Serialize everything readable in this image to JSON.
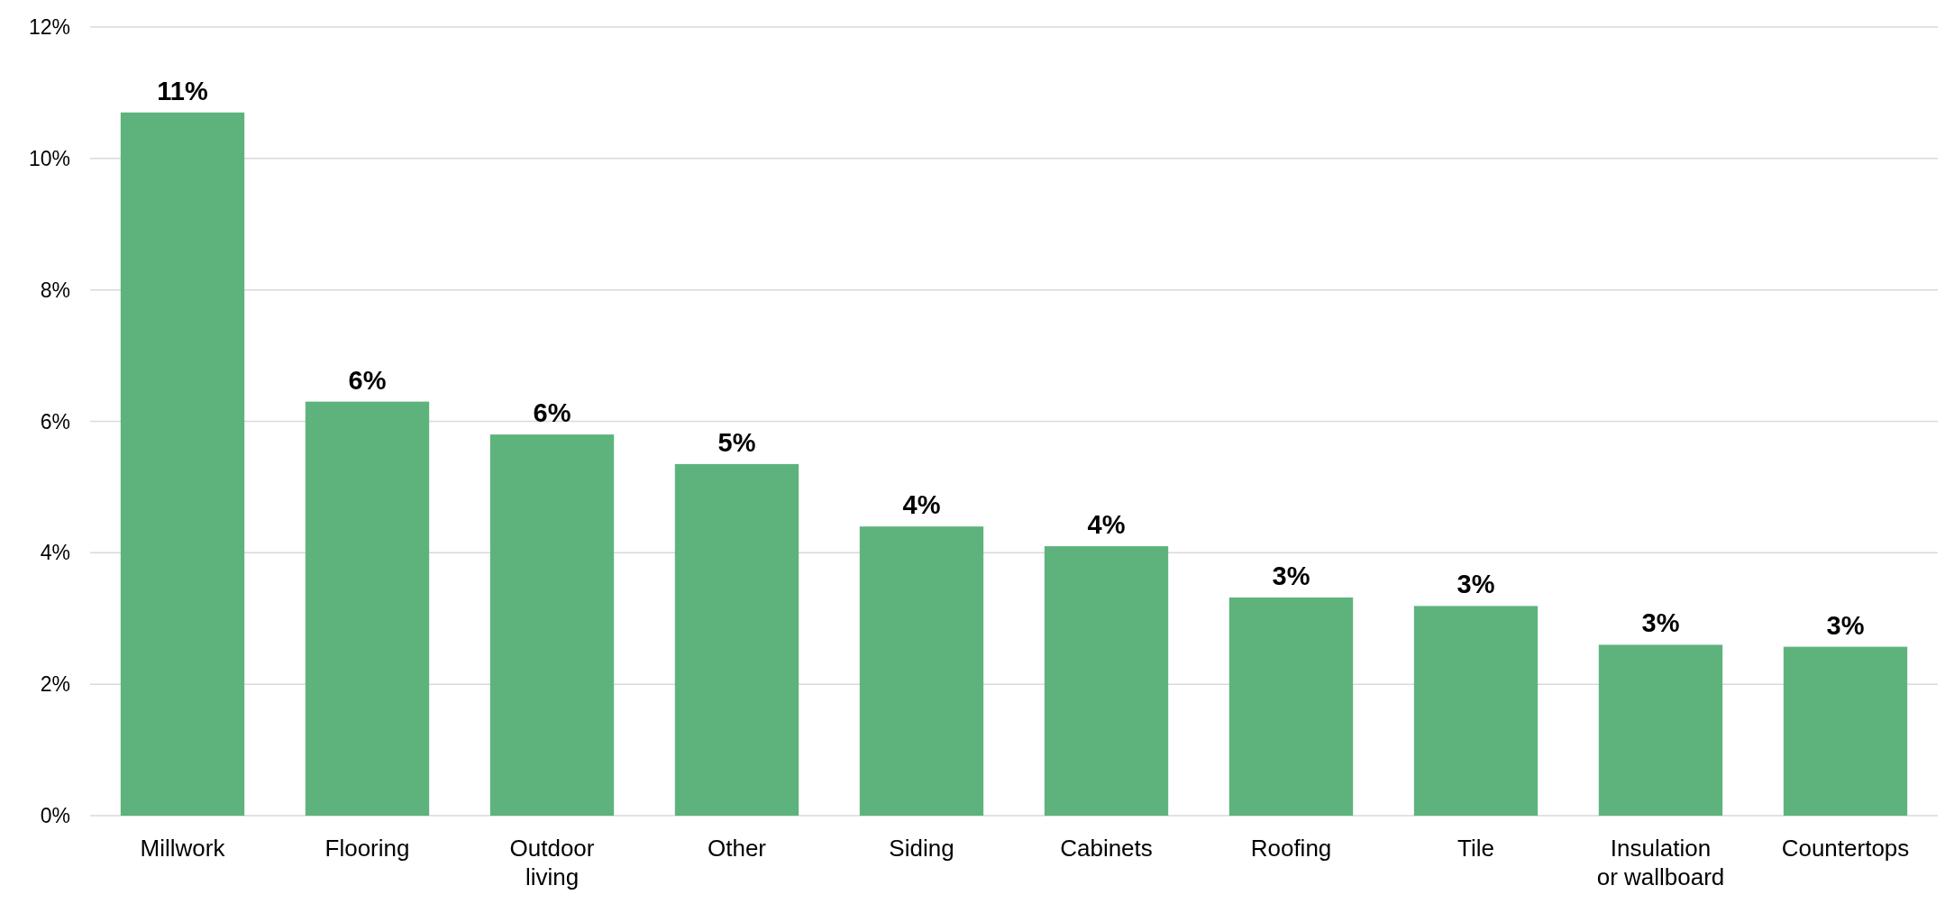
{
  "chart_data": {
    "type": "bar",
    "categories": [
      "Millwork",
      "Flooring",
      "Outdoor living",
      "Other",
      "Siding",
      "Cabinets",
      "Roofing",
      "Tile",
      "Insulation or wallboard",
      "Countertops"
    ],
    "values": [
      10.7,
      6.3,
      5.8,
      5.35,
      4.4,
      4.1,
      3.32,
      3.19,
      2.6,
      2.57
    ],
    "value_labels": [
      "11%",
      "6%",
      "6%",
      "5%",
      "4%",
      "4%",
      "3%",
      "3%",
      "3%",
      "3%"
    ],
    "color": "#5eb37d",
    "ylim": [
      0,
      12
    ],
    "yticks": [
      {
        "value": 0,
        "label": "0%"
      },
      {
        "value": 2,
        "label": "2%"
      },
      {
        "value": 4,
        "label": "4%"
      },
      {
        "value": 6,
        "label": "6%"
      },
      {
        "value": 8,
        "label": "8%"
      },
      {
        "value": 10,
        "label": "10%"
      },
      {
        "value": 12,
        "label": "12%"
      }
    ],
    "grid": "y"
  }
}
